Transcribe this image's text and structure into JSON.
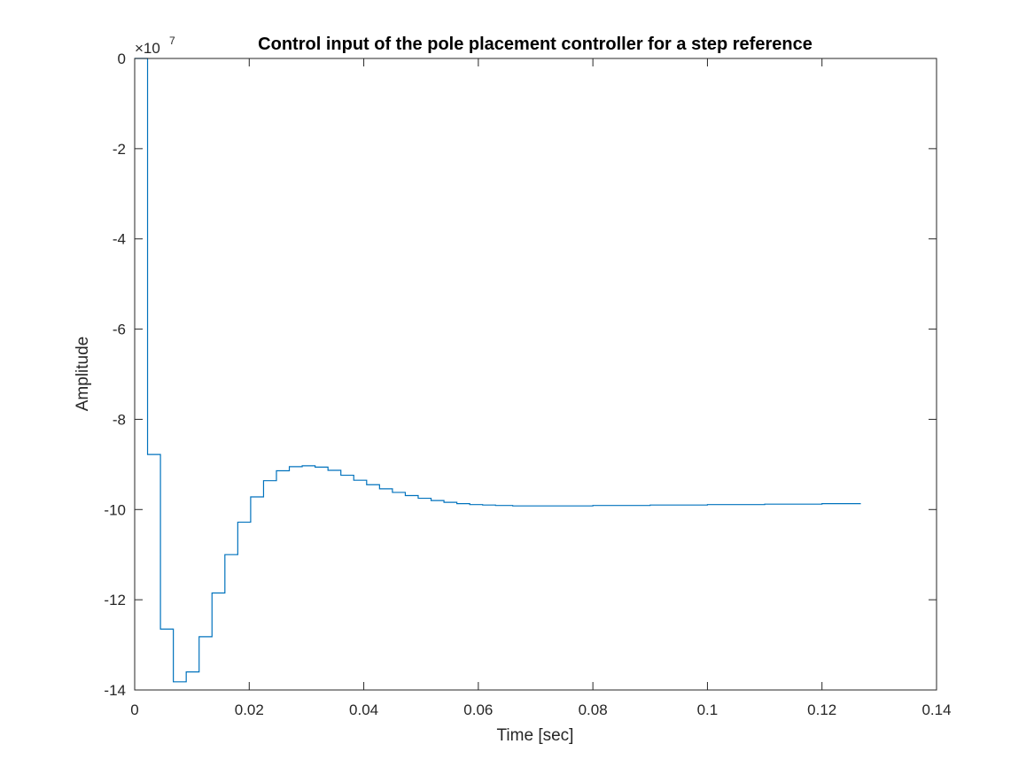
{
  "chart_data": {
    "type": "line",
    "style": "stairs",
    "title": "Control input of the pole placement controller for a step reference",
    "xlabel": "Time [sec]",
    "ylabel": "Amplitude",
    "xlim": [
      0,
      0.14
    ],
    "ylim": [
      -14,
      0
    ],
    "y_multiplier_base": "×10",
    "y_multiplier_exp": "7",
    "y_scale": 10000000,
    "xticks": [
      0,
      0.02,
      0.04,
      0.06,
      0.08,
      0.1,
      0.12,
      0.14
    ],
    "xtick_labels": [
      "0",
      "0.02",
      "0.04",
      "0.06",
      "0.08",
      "0.1",
      "0.12",
      "0.14"
    ],
    "yticks": [
      0,
      -2,
      -4,
      -6,
      -8,
      -10,
      -12,
      -14
    ],
    "ytick_labels": [
      "0",
      "-2",
      "-4",
      "-6",
      "-8",
      "-10",
      "-12",
      "-14"
    ],
    "grid": false,
    "box": true,
    "series": [
      {
        "color": "#0072BD",
        "x": [
          0,
          0.00225,
          0.0045,
          0.00675,
          0.009,
          0.01125,
          0.0135,
          0.01575,
          0.018,
          0.02025,
          0.0225,
          0.02475,
          0.027,
          0.02925,
          0.0315,
          0.03375,
          0.036,
          0.03825,
          0.0405,
          0.04275,
          0.045,
          0.04725,
          0.0495,
          0.05175,
          0.054,
          0.05625,
          0.0585,
          0.06075,
          0.063,
          0.066,
          0.07,
          0.08,
          0.09,
          0.1,
          0.11,
          0.12,
          0.1267
        ],
        "y": [
          0,
          -8.78,
          -12.65,
          -13.82,
          -13.6,
          -12.82,
          -11.85,
          -11,
          -10.28,
          -9.72,
          -9.36,
          -9.14,
          -9.05,
          -9.03,
          -9.06,
          -9.13,
          -9.24,
          -9.35,
          -9.45,
          -9.54,
          -9.62,
          -9.69,
          -9.75,
          -9.8,
          -9.84,
          -9.87,
          -9.89,
          -9.9,
          -9.91,
          -9.92,
          -9.92,
          -9.91,
          -9.9,
          -9.89,
          -9.88,
          -9.87,
          -9.86
        ]
      }
    ]
  }
}
